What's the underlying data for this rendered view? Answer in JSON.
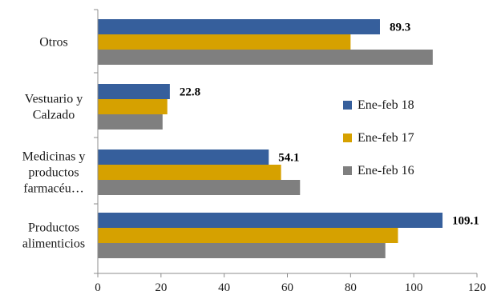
{
  "chart_data": {
    "type": "bar",
    "orientation": "horizontal",
    "categories": [
      [
        "Otros"
      ],
      [
        "Vestuario y",
        "Calzado"
      ],
      [
        "Medicinas y",
        "productos",
        "farmacéu…"
      ],
      [
        "Productos",
        "alimenticios"
      ]
    ],
    "series": [
      {
        "name": "Ene-feb 18",
        "color": "#365f9c",
        "values": [
          89.3,
          22.8,
          54.1,
          109.1
        ]
      },
      {
        "name": "Ene-feb 17",
        "color": "#d6a100",
        "values": [
          80,
          22,
          58,
          95
        ]
      },
      {
        "name": "Ene-feb 16",
        "color": "#7f7f7f",
        "values": [
          106,
          20.5,
          64,
          91
        ]
      }
    ],
    "data_labels": [
      "89.3",
      "22.8",
      "54.1",
      "109.1"
    ],
    "x_ticks": [
      "0",
      "20",
      "40",
      "60",
      "80",
      "100",
      "120"
    ],
    "xlim": [
      0,
      120
    ],
    "grid": false,
    "legend_position": "right"
  }
}
